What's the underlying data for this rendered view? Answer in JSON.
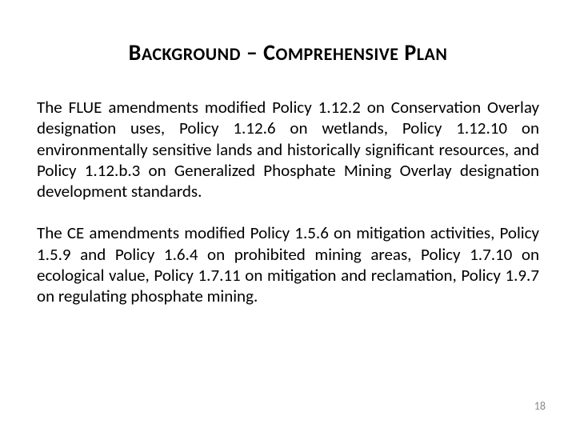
{
  "title_parts": {
    "b_cap": "B",
    "background_rest": "ACKGROUND",
    "sep": " – ",
    "c_cap": "C",
    "comp_rest": "OMPREHENSIVE",
    "space": " ",
    "p_cap": "P",
    "plan_rest": "LAN"
  },
  "paragraphs": {
    "p1": "The FLUE amendments modified Policy 1.12.2 on Conservation Overlay designation uses, Policy 1.12.6 on wetlands, Policy 1.12.10 on environmentally sensitive lands and historically significant resources, and Policy 1.12.b.3 on Generalized Phosphate Mining Overlay designation development standards.",
    "p2": "The CE amendments modified Policy 1.5.6 on mitigation activities, Policy 1.5.9 and Policy 1.6.4 on prohibited mining areas, Policy 1.7.10 on ecological value, Policy 1.7.11 on mitigation and reclamation, Policy 1.9.7 on regulating phosphate mining."
  },
  "page_number": "18",
  "colors": {
    "text": "#000000",
    "page_num": "#8a8a8a",
    "background": "#ffffff"
  },
  "typography": {
    "title_fontsize": 28,
    "title_smallcaps_fontsize": 22,
    "body_fontsize": 21,
    "pagenum_fontsize": 14,
    "font_family": "Calibri"
  }
}
